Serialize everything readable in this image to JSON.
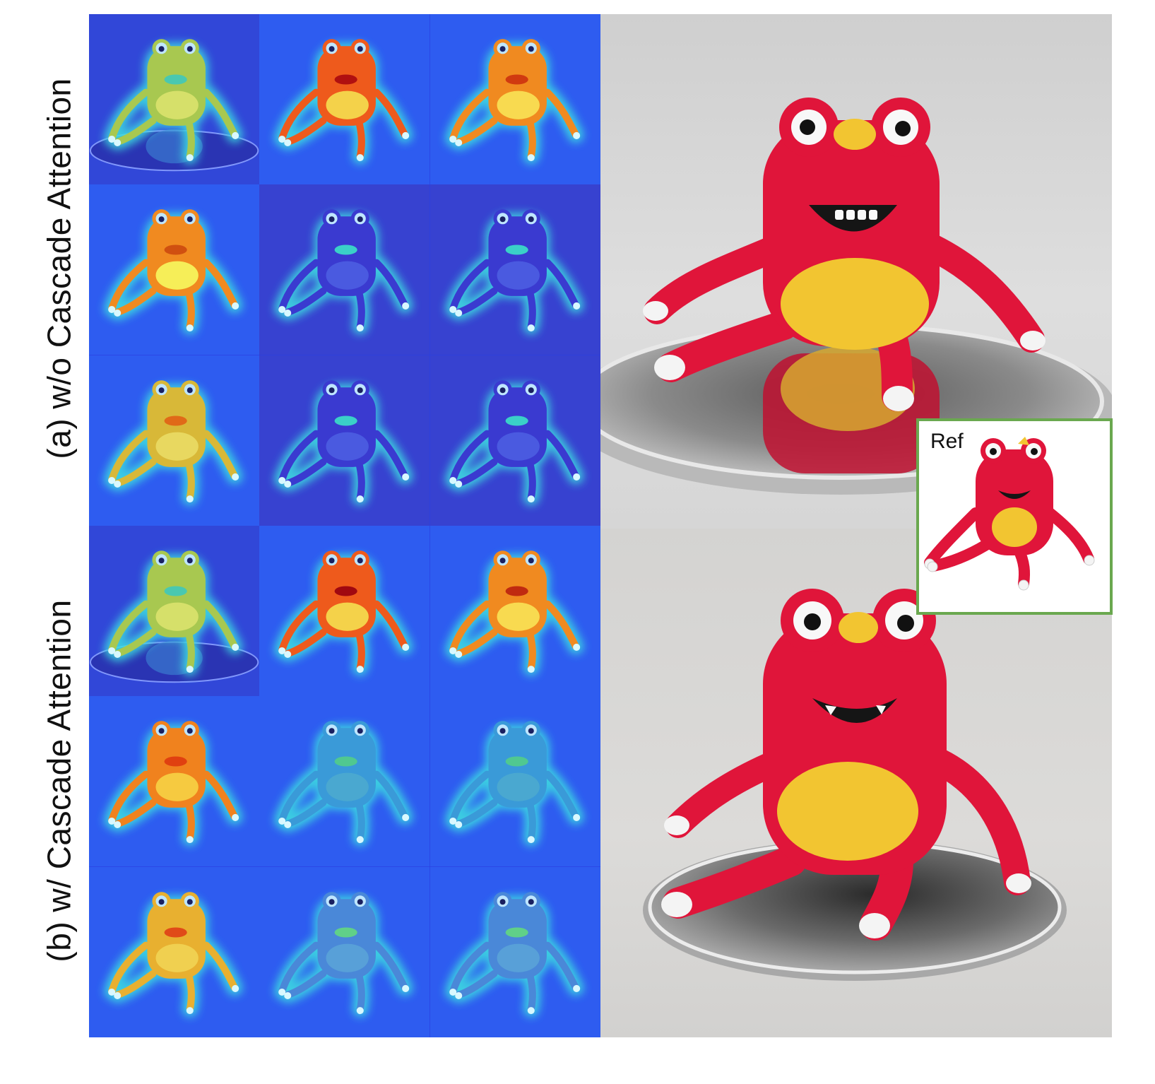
{
  "labels": {
    "row_a": "(a) w/o Cascade Attention",
    "row_b": "(b) w/ Cascade Attention",
    "ref": "Ref"
  },
  "colors": {
    "heat_background": "#2a3fe0",
    "plush_red": "#e0153a",
    "plush_yellow": "#f2c531",
    "inset_border": "#6aa84f"
  },
  "heatmaps": {
    "row_a": [
      {
        "subject": "#a8c850",
        "bg": "#3147d8",
        "belly": "#d6e06a",
        "mouth": "#4ac8b0",
        "mirror": true
      },
      {
        "subject": "#ee5a1c",
        "bg": "#2e5cf0",
        "belly": "#f4d24a",
        "mouth": "#b01010"
      },
      {
        "subject": "#f08a20",
        "bg": "#2e5cf0",
        "belly": "#f8da50",
        "mouth": "#d03a10"
      },
      {
        "subject": "#f08a20",
        "bg": "#2e5cf0",
        "belly": "#f6ee58",
        "mouth": "#d05010"
      },
      {
        "subject": "#3a3ad0",
        "bg": "#3742d0",
        "belly": "#4a5ae0",
        "mouth": "#3ad0c8"
      },
      {
        "subject": "#3a3ad0",
        "bg": "#3742d0",
        "belly": "#4a5ae0",
        "mouth": "#3ad0c8"
      },
      {
        "subject": "#d8b838",
        "bg": "#2e5cf0",
        "belly": "#e8d860",
        "mouth": "#e06a18"
      },
      {
        "subject": "#3a3ad0",
        "bg": "#3742d0",
        "belly": "#4a5ae0",
        "mouth": "#3ad0c8"
      },
      {
        "subject": "#3a3ad0",
        "bg": "#3742d0",
        "belly": "#4a5ae0",
        "mouth": "#3ad0c8"
      }
    ],
    "row_b": [
      {
        "subject": "#a8c850",
        "bg": "#3147d8",
        "belly": "#d6e06a",
        "mouth": "#4ac8b0",
        "mirror": true
      },
      {
        "subject": "#ee5a1c",
        "bg": "#2e5cf0",
        "belly": "#f4d24a",
        "mouth": "#a00810"
      },
      {
        "subject": "#f08a20",
        "bg": "#2e5cf0",
        "belly": "#f8da50",
        "mouth": "#c02a10"
      },
      {
        "subject": "#f0821e",
        "bg": "#2e5cf0",
        "belly": "#f6ca40",
        "mouth": "#e04010"
      },
      {
        "subject": "#3a9ad8",
        "bg": "#2e5cf0",
        "belly": "#4aa8d0",
        "mouth": "#50c890"
      },
      {
        "subject": "#3a9ad8",
        "bg": "#2e5cf0",
        "belly": "#4aa8d0",
        "mouth": "#50c890"
      },
      {
        "subject": "#e8b030",
        "bg": "#2e5cf0",
        "belly": "#f0d050",
        "mouth": "#e04a18"
      },
      {
        "subject": "#4a88d8",
        "bg": "#2e5cf0",
        "belly": "#58a0d8",
        "mouth": "#60d088"
      },
      {
        "subject": "#4a88d8",
        "bg": "#2e5cf0",
        "belly": "#58a0d8",
        "mouth": "#60d088"
      }
    ]
  }
}
